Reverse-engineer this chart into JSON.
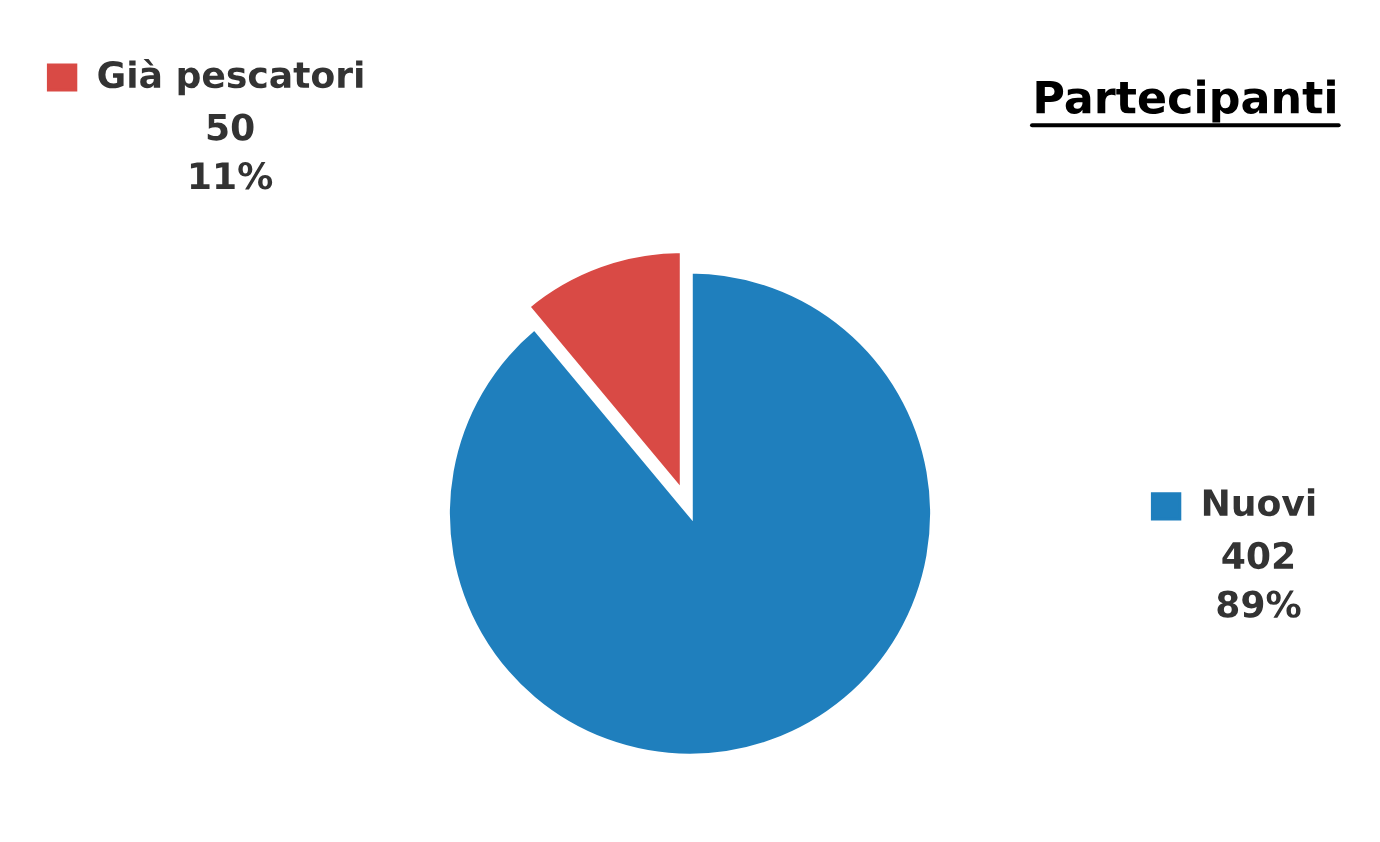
{
  "chart_data": {
    "type": "pie",
    "title": "Partecipanti",
    "categories": [
      "Nuovi",
      "Già pescatori"
    ],
    "values": [
      402,
      50
    ],
    "colors": [
      "#1f7fbd",
      "#d94a45"
    ],
    "value_labels": [
      "402\n89%",
      "50\n11%"
    ],
    "legend": "right"
  }
}
